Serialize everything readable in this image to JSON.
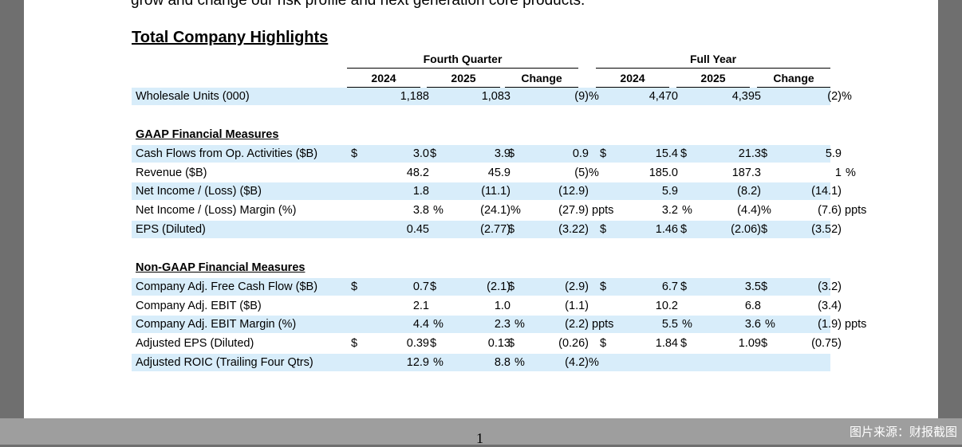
{
  "doc": {
    "top_text": "grow and change our risk profile and next generation core products.",
    "section_title": "Total Company Highlights",
    "page_number": "1"
  },
  "header": {
    "group_q": "Fourth Quarter",
    "group_fy": "Full Year",
    "cols": [
      "2024",
      "2025",
      "Change",
      "2024",
      "2025",
      "Change"
    ]
  },
  "subheads": {
    "gaap": "GAAP Financial Measures",
    "nongaap": "Non-GAAP Financial Measures"
  },
  "rows": [
    {
      "label": "Wholesale Units (000)",
      "cells": [
        {
          "d": "",
          "n": "1,188",
          "s": ""
        },
        {
          "d": "",
          "n": "1,083",
          "s": ""
        },
        {
          "d": "",
          "n": "(9)",
          "s": "%"
        },
        {
          "d": "",
          "n": "4,470",
          "s": ""
        },
        {
          "d": "",
          "n": "4,395",
          "s": ""
        },
        {
          "d": "",
          "n": "(2)",
          "s": "%"
        }
      ]
    },
    {
      "label": "Cash Flows from Op. Activities ($B)",
      "cells": [
        {
          "d": "$",
          "n": "3.0",
          "s": ""
        },
        {
          "d": "$",
          "n": "3.9",
          "s": ""
        },
        {
          "d": "$",
          "n": "0.9",
          "s": ""
        },
        {
          "d": "$",
          "n": "15.4",
          "s": ""
        },
        {
          "d": "$",
          "n": "21.3",
          "s": ""
        },
        {
          "d": "$",
          "n": "5.9",
          "s": ""
        }
      ]
    },
    {
      "label": "Revenue ($B)",
      "cells": [
        {
          "d": "",
          "n": "48.2",
          "s": ""
        },
        {
          "d": "",
          "n": "45.9",
          "s": ""
        },
        {
          "d": "",
          "n": "(5)",
          "s": "%"
        },
        {
          "d": "",
          "n": "185.0",
          "s": ""
        },
        {
          "d": "",
          "n": "187.3",
          "s": ""
        },
        {
          "d": "",
          "n": "1",
          "s": "%"
        }
      ]
    },
    {
      "label": "Net Income / (Loss) ($B)",
      "cells": [
        {
          "d": "",
          "n": "1.8",
          "s": ""
        },
        {
          "d": "",
          "n": "(11.1)",
          "s": ""
        },
        {
          "d": "",
          "n": "(12.9)",
          "s": ""
        },
        {
          "d": "",
          "n": "5.9",
          "s": ""
        },
        {
          "d": "",
          "n": "(8.2)",
          "s": ""
        },
        {
          "d": "",
          "n": "(14.1)",
          "s": ""
        }
      ]
    },
    {
      "label": "Net Income / (Loss) Margin (%)",
      "cells": [
        {
          "d": "",
          "n": "3.8",
          "s": "%"
        },
        {
          "d": "",
          "n": "(24.1)",
          "s": "%"
        },
        {
          "d": "",
          "n": "(27.9)",
          "s": "ppts"
        },
        {
          "d": "",
          "n": "3.2",
          "s": "%"
        },
        {
          "d": "",
          "n": "(4.4)",
          "s": "%"
        },
        {
          "d": "",
          "n": "(7.6)",
          "s": "ppts"
        }
      ]
    },
    {
      "label": "EPS (Diluted)",
      "cells": [
        {
          "d": "",
          "n": "0.45",
          "s": ""
        },
        {
          "d": "",
          "n": "(2.77)",
          "s": ""
        },
        {
          "d": "$",
          "n": "(3.22)",
          "s": ""
        },
        {
          "d": "$",
          "n": "1.46",
          "s": ""
        },
        {
          "d": "$",
          "n": "(2.06)",
          "s": ""
        },
        {
          "d": "$",
          "n": "(3.52)",
          "s": ""
        }
      ]
    },
    {
      "label": "Company Adj. Free Cash Flow ($B)",
      "cells": [
        {
          "d": "$",
          "n": "0.7",
          "s": ""
        },
        {
          "d": "$",
          "n": "(2.1)",
          "s": ""
        },
        {
          "d": "$",
          "n": "(2.9)",
          "s": ""
        },
        {
          "d": "$",
          "n": "6.7",
          "s": ""
        },
        {
          "d": "$",
          "n": "3.5",
          "s": ""
        },
        {
          "d": "$",
          "n": "(3.2)",
          "s": ""
        }
      ]
    },
    {
      "label": "Company Adj. EBIT ($B)",
      "cells": [
        {
          "d": "",
          "n": "2.1",
          "s": ""
        },
        {
          "d": "",
          "n": "1.0",
          "s": ""
        },
        {
          "d": "",
          "n": "(1.1)",
          "s": ""
        },
        {
          "d": "",
          "n": "10.2",
          "s": ""
        },
        {
          "d": "",
          "n": "6.8",
          "s": ""
        },
        {
          "d": "",
          "n": "(3.4)",
          "s": ""
        }
      ]
    },
    {
      "label": "Company Adj. EBIT Margin (%)",
      "cells": [
        {
          "d": "",
          "n": "4.4",
          "s": "%"
        },
        {
          "d": "",
          "n": "2.3",
          "s": "%"
        },
        {
          "d": "",
          "n": "(2.2)",
          "s": "ppts"
        },
        {
          "d": "",
          "n": "5.5",
          "s": "%"
        },
        {
          "d": "",
          "n": "3.6",
          "s": "%"
        },
        {
          "d": "",
          "n": "(1.9)",
          "s": "ppts"
        }
      ]
    },
    {
      "label": "Adjusted EPS (Diluted)",
      "cells": [
        {
          "d": "$",
          "n": "0.39",
          "s": ""
        },
        {
          "d": "$",
          "n": "0.13",
          "s": ""
        },
        {
          "d": "$",
          "n": "(0.26)",
          "s": ""
        },
        {
          "d": "$",
          "n": "1.84",
          "s": ""
        },
        {
          "d": "$",
          "n": "1.09",
          "s": ""
        },
        {
          "d": "$",
          "n": "(0.75)",
          "s": ""
        }
      ]
    },
    {
      "label": "Adjusted ROIC (Trailing Four Qtrs)",
      "cells": [
        {
          "d": "",
          "n": "12.9",
          "s": "%"
        },
        {
          "d": "",
          "n": "8.8",
          "s": "%"
        },
        {
          "d": "",
          "n": "(4.2)",
          "s": "%"
        },
        {
          "d": "",
          "n": "",
          "s": ""
        },
        {
          "d": "",
          "n": "",
          "s": ""
        },
        {
          "d": "",
          "n": "",
          "s": ""
        }
      ]
    }
  ],
  "watermark": "图片来源：财报截图"
}
